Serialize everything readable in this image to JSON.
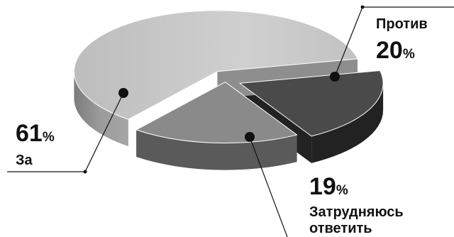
{
  "chart_data": {
    "type": "pie",
    "three_d": true,
    "exploded": true,
    "legend": "none",
    "slices": [
      {
        "label": "За",
        "value": 61,
        "percent_text": "61",
        "percent_sign": "%",
        "color": "#c4c4c4",
        "side_color": "#8e8e8e"
      },
      {
        "label": "Против",
        "value": 20,
        "percent_text": "20",
        "percent_sign": "%",
        "color": "#4a4a4a",
        "side_color": "#222222"
      },
      {
        "label": "Затрудняюсь ответить",
        "label_lines": [
          "Затрудняюсь",
          "ответить"
        ],
        "value": 19,
        "percent_text": "19",
        "percent_sign": "%",
        "color": "#8a8a8a",
        "side_color": "#5a5a5a"
      }
    ],
    "leader_color": "#111111",
    "marker_color": "#111111"
  }
}
